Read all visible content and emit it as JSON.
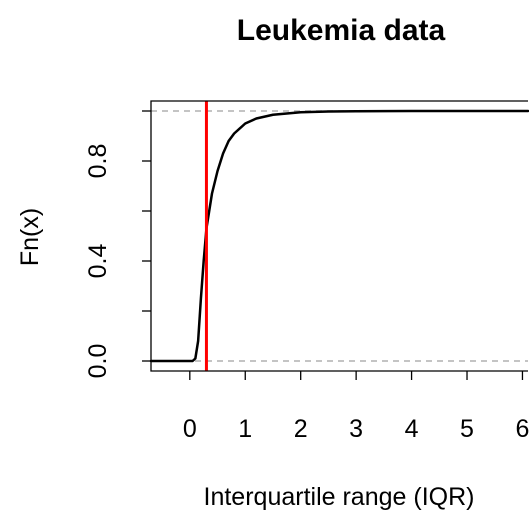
{
  "chart_data": {
    "type": "line",
    "title": "Leukemia data",
    "xlabel": "Interquartile range (IQR)",
    "ylabel": "Fn(x)",
    "xlim": [
      -0.7,
      6.1
    ],
    "ylim": [
      -0.04,
      1.04
    ],
    "x_ticks": [
      0,
      1,
      2,
      3,
      4,
      5,
      6
    ],
    "x_tick_labels": [
      "0",
      "1",
      "2",
      "3",
      "4",
      "5",
      "6"
    ],
    "y_ticks": [
      0.0,
      0.2,
      0.4,
      0.6,
      0.8,
      1.0
    ],
    "y_tick_labels": [
      "0.0",
      "",
      "0.4",
      "",
      "0.8",
      ""
    ],
    "reference_hlines": [
      0,
      1
    ],
    "vertical_line": {
      "x": 0.3,
      "color": "#ff0000"
    },
    "series": [
      {
        "points": [
          [
            -0.7,
            0.0
          ],
          [
            0.05,
            0.0
          ],
          [
            0.1,
            0.01
          ],
          [
            0.15,
            0.08
          ],
          [
            0.2,
            0.25
          ],
          [
            0.25,
            0.4
          ],
          [
            0.3,
            0.53
          ],
          [
            0.35,
            0.6
          ],
          [
            0.4,
            0.67
          ],
          [
            0.5,
            0.76
          ],
          [
            0.6,
            0.83
          ],
          [
            0.7,
            0.88
          ],
          [
            0.8,
            0.91
          ],
          [
            1.0,
            0.95
          ],
          [
            1.2,
            0.97
          ],
          [
            1.5,
            0.985
          ],
          [
            2.0,
            0.995
          ],
          [
            2.5,
            0.998
          ],
          [
            3.0,
            0.999
          ],
          [
            4.0,
            1.0
          ],
          [
            6.1,
            1.0
          ]
        ],
        "color": "#000000"
      }
    ]
  }
}
